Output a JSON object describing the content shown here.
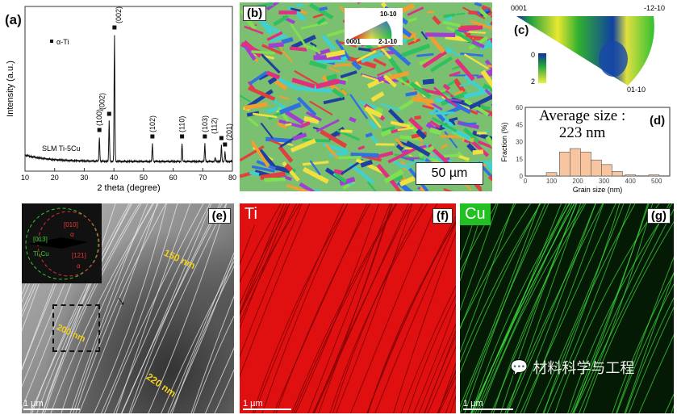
{
  "panels": {
    "a": {
      "label": "(a)"
    },
    "b": {
      "label": "(b)",
      "ipf_key": {
        "top": "10-10",
        "left": "0001",
        "right": "2-1-10"
      },
      "scale": "50 µm"
    },
    "c": {
      "label": "(c)",
      "corner_left": "0001",
      "corner_right": "-12-10",
      "corner_bottom": "01-10",
      "colorbar_min": "0",
      "colorbar_max": "2"
    },
    "d": {
      "label": "(d)",
      "annotation_line1": "Average size :",
      "annotation_line2": "223 nm"
    },
    "e": {
      "label": "(e)",
      "saed": {
        "ring1_label": "[013]",
        "ring1_phase": "Ti₂Cu",
        "ring2_label": "[010]",
        "ring2_phase": "α",
        "ring3_label": "[121]",
        "ring3_phase": "α"
      },
      "measure1": "150 nm",
      "measure2": "200 nm",
      "measure3": "220 nm",
      "scale": "1 µm"
    },
    "f": {
      "label": "(f)",
      "element": "Ti",
      "scale": "1 µm",
      "color": "#e01010"
    },
    "g": {
      "label": "(g)",
      "element": "Cu",
      "scale": "1 µm",
      "color": "#22c022"
    }
  },
  "watermark": "材料科学与工程",
  "chart_data": [
    {
      "type": "line",
      "xlabel": "2 theta (degree)",
      "ylabel": "Intensity (a.u.)",
      "xlim": [
        10,
        80
      ],
      "xticks": [
        10,
        20,
        30,
        40,
        50,
        60,
        70,
        80
      ],
      "legend": "■ α-Ti",
      "legend_placement": "top-left",
      "series_label": "SLM Ti-5Cu",
      "peaks": [
        {
          "x": 35.1,
          "label": "(100)",
          "y": 30
        },
        {
          "x": 38.4,
          "label": "(002)",
          "y": 50
        },
        {
          "x": 40.2,
          "label": "(002)",
          "y": 157
        },
        {
          "x": 53.0,
          "label": "(102)",
          "y": 22
        },
        {
          "x": 63.0,
          "label": "(110)",
          "y": 22
        },
        {
          "x": 70.7,
          "label": "(103)",
          "y": 22
        },
        {
          "x": 74.2,
          "label": "",
          "y": 5
        },
        {
          "x": 76.3,
          "label": "(112)",
          "y": 20
        },
        {
          "x": 77.5,
          "label": "(201)",
          "y": 12
        }
      ]
    },
    {
      "type": "bar",
      "xlabel": "Grain size (nm)",
      "ylabel": "Fraction (%)",
      "xlim": [
        0,
        550
      ],
      "ylim": [
        0,
        60
      ],
      "xticks": [
        0,
        100,
        200,
        300,
        400,
        500
      ],
      "yticks": [
        0,
        15,
        30,
        45,
        60
      ],
      "x": [
        100,
        150,
        190,
        230,
        270,
        310,
        350,
        400,
        490
      ],
      "values": [
        3,
        21,
        24,
        21,
        14,
        10,
        4,
        1,
        1
      ],
      "bar_color": "#f7c6a0"
    }
  ]
}
